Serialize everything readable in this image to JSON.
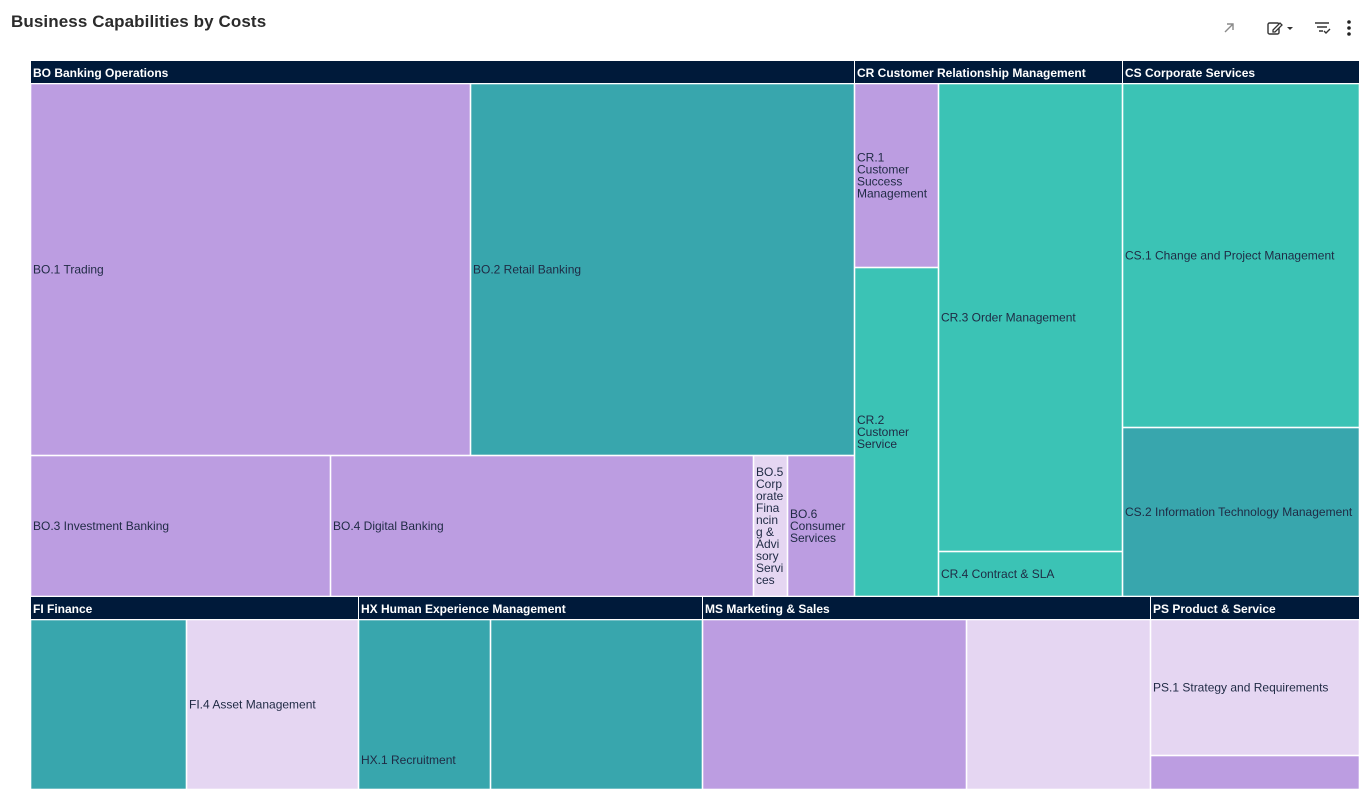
{
  "header": {
    "title": "Business Capabilities by Costs"
  },
  "toolbar": {
    "icons": [
      "expand-icon",
      "edit-icon",
      "filter-icon",
      "more-icon"
    ]
  },
  "colors": {
    "header_bg": "#001a3a",
    "purple": "#bc9de1",
    "teal_dark": "#38a6ad",
    "teal_light": "#3bc3b5",
    "lavender": "#e5d6f2"
  },
  "chart_data": {
    "type": "treemap",
    "title": "Business Capabilities by Costs",
    "groups": [
      {
        "name": "BO Banking Operations",
        "items": [
          {
            "label": "BO.1 Trading",
            "color": "purple"
          },
          {
            "label": "BO.2 Retail Banking",
            "color": "teal_dark"
          },
          {
            "label": "BO.3 Investment Banking",
            "color": "purple"
          },
          {
            "label": "BO.4 Digital Banking",
            "color": "purple"
          },
          {
            "label": "BO.5 Corporate Financing & Advisory Services",
            "color": "lavender"
          },
          {
            "label": "BO.6 Consumer Services",
            "color": "purple"
          }
        ]
      },
      {
        "name": "CR Customer Relationship Management",
        "items": [
          {
            "label": "CR.1 Customer Success Management",
            "color": "purple"
          },
          {
            "label": "CR.2 Customer Service",
            "color": "teal_light"
          },
          {
            "label": "CR.3 Order Management",
            "color": "teal_light"
          },
          {
            "label": "CR.4 Contract & SLA",
            "color": "teal_light"
          }
        ]
      },
      {
        "name": "CS Corporate Services",
        "items": [
          {
            "label": "CS.1 Change and Project Management",
            "color": "teal_light"
          },
          {
            "label": "CS.2 Information Technology Management",
            "color": "teal_dark"
          }
        ]
      },
      {
        "name": "FI Finance",
        "items": [
          {
            "label": "",
            "color": "teal_dark"
          },
          {
            "label": "FI.4 Asset Management",
            "color": "lavender"
          }
        ]
      },
      {
        "name": "HX Human Experience Management",
        "items": [
          {
            "label": "HX.1 Recruitment",
            "color": "teal_dark"
          },
          {
            "label": "",
            "color": "teal_dark"
          }
        ]
      },
      {
        "name": "MS Marketing & Sales",
        "items": [
          {
            "label": "",
            "color": "purple"
          },
          {
            "label": "",
            "color": "lavender"
          }
        ]
      },
      {
        "name": "PS Product & Service",
        "items": [
          {
            "label": "PS.1 Strategy and Requirements",
            "color": "lavender"
          },
          {
            "label": "",
            "color": "purple"
          }
        ]
      }
    ]
  }
}
